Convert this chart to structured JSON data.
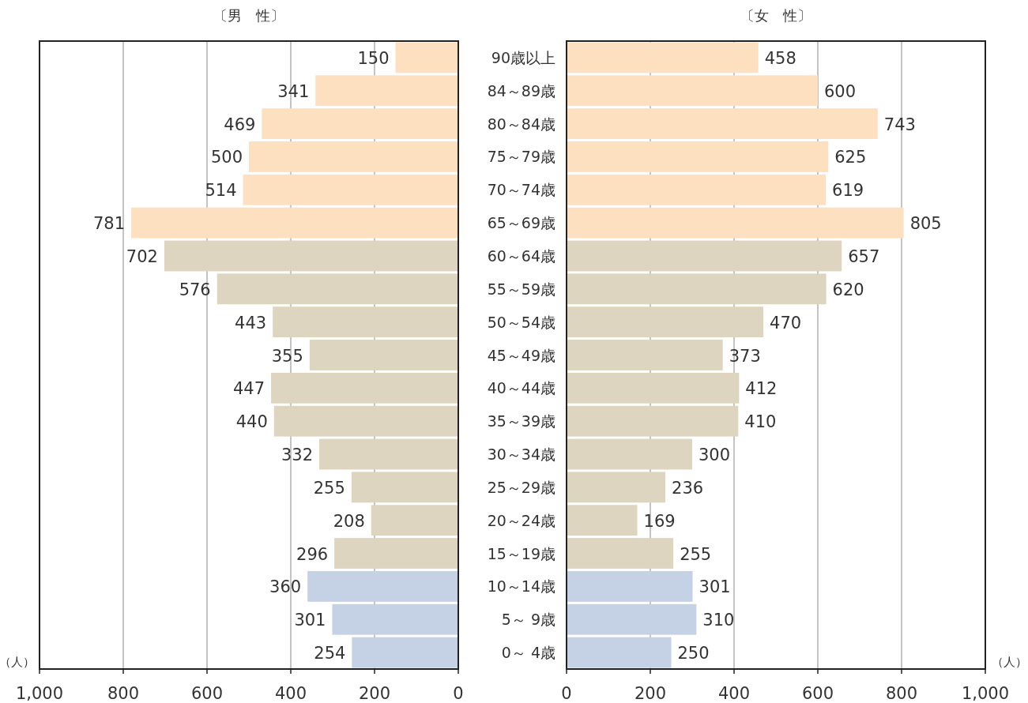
{
  "chart_data": [
    {
      "type": "bar",
      "orientation": "horizontal",
      "title": "〔男　性〕",
      "xlabel": "（人）",
      "categories": [
        null,
        null,
        null,
        null,
        null,
        null,
        null,
        null,
        null,
        null,
        null,
        null,
        null,
        null,
        null,
        null,
        null,
        null,
        null
      ],
      "values": [
        150,
        341,
        469,
        500,
        514,
        781,
        702,
        576,
        443,
        355,
        447,
        440,
        332,
        255,
        208,
        296,
        360,
        301,
        254
      ],
      "colors": [
        "#fde0c0",
        "#fde0c0",
        "#fde0c0",
        "#fde0c0",
        "#fde0c0",
        "#fde0c0",
        "#ddd5bf",
        "#ddd5bf",
        "#ddd5bf",
        "#ddd5bf",
        "#ddd5bf",
        "#ddd5bf",
        "#ddd5bf",
        "#ddd5bf",
        "#ddd5bf",
        "#ddd5bf",
        "#c5d1e5",
        "#c5d1e5",
        "#c5d1e5"
      ],
      "xlim": [
        1000,
        0
      ],
      "xticks": [
        {
          "value": 1000,
          "label": "1,000"
        },
        800,
        600,
        400,
        200,
        0
      ],
      "grid": "x",
      "data_labels": true
    },
    {
      "type": "bar",
      "orientation": "horizontal",
      "title": "〔女　性〕",
      "xlabel": "（人）",
      "categories": [
        "90歳以上",
        "84～89歳",
        "80～84歳",
        "75～79歳",
        "70～74歳",
        "65～69歳",
        "60～64歳",
        "55～59歳",
        "50～54歳",
        "45～49歳",
        "40～44歳",
        "35～39歳",
        "30～34歳",
        "25～29歳",
        "20～24歳",
        "15～19歳",
        "10～14歳",
        "5～ 9歳",
        "0～ 4歳"
      ],
      "values": [
        458,
        600,
        743,
        625,
        619,
        805,
        657,
        620,
        470,
        373,
        412,
        410,
        300,
        236,
        169,
        255,
        301,
        310,
        250
      ],
      "colors": [
        "#fde0c0",
        "#fde0c0",
        "#fde0c0",
        "#fde0c0",
        "#fde0c0",
        "#fde0c0",
        "#ddd5bf",
        "#ddd5bf",
        "#ddd5bf",
        "#ddd5bf",
        "#ddd5bf",
        "#ddd5bf",
        "#ddd5bf",
        "#ddd5bf",
        "#ddd5bf",
        "#ddd5bf",
        "#c5d1e5",
        "#c5d1e5",
        "#c5d1e5"
      ],
      "xlim": [
        0,
        1000
      ],
      "xticks": [
        0,
        200,
        400,
        600,
        800,
        {
          "value": 1000,
          "label": "1,000"
        }
      ],
      "grid": "x",
      "data_labels": true
    }
  ]
}
